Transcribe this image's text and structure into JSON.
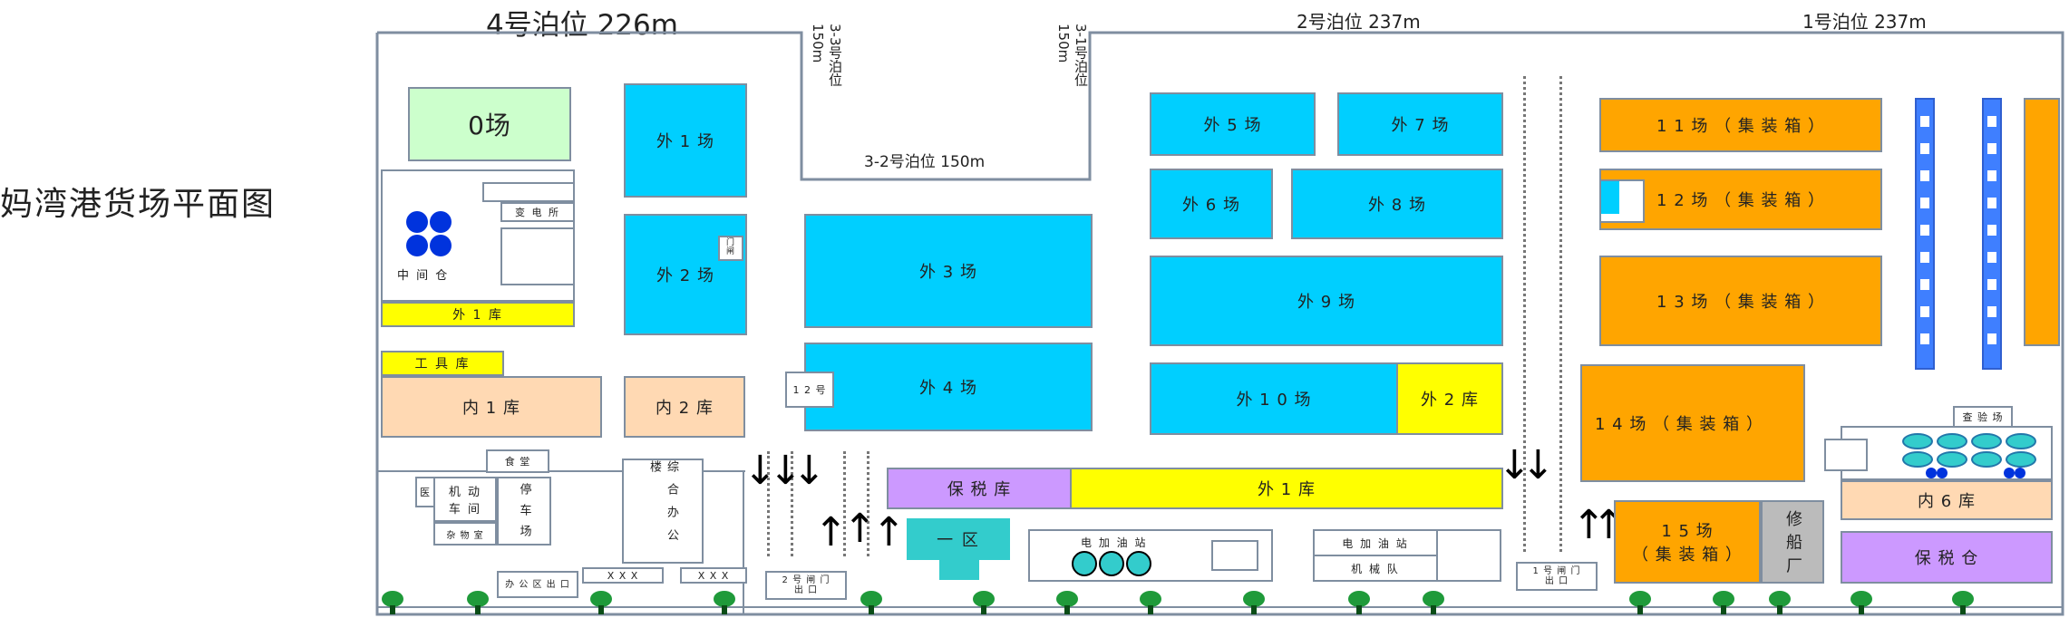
{
  "page_title": "妈湾港货场平面图",
  "berths": {
    "b4": "4号泊位 226m",
    "b33": "3-3号泊位 150m",
    "b31": "3-1号泊位 150m",
    "b32": "3-2号泊位 150m",
    "b2": "2号泊位 237m",
    "b1": "1号泊位 237m"
  },
  "yards": {
    "yard0": "0场",
    "middle_warehouse": "中 间 仓",
    "substation": "变 电 所",
    "outer_wh1_small": "外 1 库",
    "tool_wh": "工 具 库",
    "inner_wh1": "内 1 库",
    "wai1": "外 1 场",
    "wai2": "外 2 场",
    "gate_small": "门 闸",
    "inner_wh2": "内 2 库",
    "wai3": "外 3 场",
    "wai4": "外 4 场",
    "gate12": "1 2 号",
    "wai5": "外 5 场",
    "wai7": "外 7 场",
    "wai6": "外 6 场",
    "wai8": "外 8 场",
    "wai9": "外 9 场",
    "wai10": "外 1 0 场",
    "outer_wh2": "外 2 库",
    "c11": "1 1 场 （ 集 装 箱 ）",
    "c12": "1 2 场 （ 集 装 箱 ）",
    "c13": "1 3 场 （ 集 装 箱 ）",
    "c14": "1 4 场 （ 集 装 箱 ）",
    "c15_line1": "1 5 场",
    "c15_line2": "（ 集 装 箱 ）",
    "shipyard": "修 船 厂",
    "inspection": "查 验 场",
    "inner_wh6": "内 6 库",
    "bonded_storage": "保 税 仓",
    "canteen": "食 堂",
    "clinic": "医",
    "motor_workshop": "机 动 车 间",
    "parking": "停 车 场",
    "storeroom": "杂 物 室",
    "office_building": "综 合 办 公 楼",
    "office_exit": "办 公 区 出 口",
    "xxx1": "X X X",
    "xxx2": "X X X",
    "gate2": "2 号 闸 门 出 口",
    "bonded_wh": "保 税 库",
    "outer_wh1_long": "外 1 库",
    "zone1": "一 区",
    "gas_station_1": "电 加 油 站",
    "gas_station_2": "电 加 油 站",
    "machinery_team": "机 械 队",
    "gate1": "1 号 闸 门 出 口"
  },
  "colors": {
    "outdoor_yard": "#00cfff",
    "container_yard": "#ffa500",
    "warehouse_yellow": "#ffff00",
    "warehouse_peach": "#ffd9b3",
    "bonded_purple": "#cc99ff",
    "boundary": "#7f8ea0",
    "crane_blue": "#3f7fff"
  }
}
